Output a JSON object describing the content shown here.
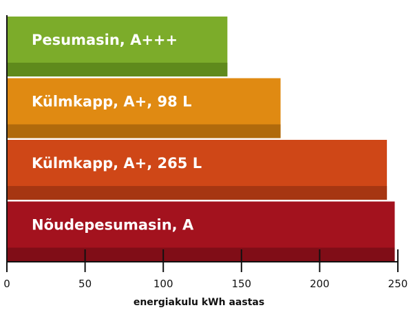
{
  "chart_data": {
    "type": "bar",
    "orientation": "horizontal",
    "title": "",
    "xlabel": "energiakulu kWh aastas",
    "ylabel": "",
    "xlim": [
      0,
      250
    ],
    "xticks": [
      0,
      50,
      100,
      150,
      200,
      250
    ],
    "grid": false,
    "categories": [
      "Pesumasin, A+++",
      "Külmkapp, A+, 98 L",
      "Külmkapp, A+, 265 L",
      "Nõudepesumasin, A"
    ],
    "values": [
      141,
      175,
      243,
      248
    ],
    "colors": [
      "#7cac2a",
      "#e08a12",
      "#cf4717",
      "#a3121e"
    ],
    "shade_colors": [
      "#5f8a1c",
      "#b06a0c",
      "#a63612",
      "#800d17"
    ]
  }
}
